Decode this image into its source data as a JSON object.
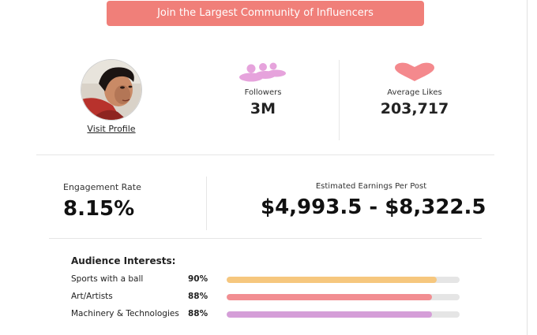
{
  "banner": {
    "label": "Join the Largest Community of Influencers",
    "color": "#f07f79"
  },
  "profile": {
    "avatar_icon": "profile-photo",
    "visit_label": "Visit Profile"
  },
  "stats": {
    "followers": {
      "icon": "people-icon",
      "icon_color": "#e6a3dc",
      "label": "Followers",
      "value": "3M"
    },
    "likes": {
      "icon": "heart-icon",
      "icon_color": "#f4898d",
      "label": "Average Likes",
      "value": "203,717"
    }
  },
  "engagement": {
    "label": "Engagement Rate",
    "value": "8.15%"
  },
  "earnings": {
    "label": "Estimated Earnings Per Post",
    "value": "$4,993.5 - $8,322.5"
  },
  "interests": {
    "title": "Audience Interests:",
    "items": [
      {
        "name": "Sports with a ball",
        "percent_label": "90%",
        "percent": 90,
        "color": "#f6c77e"
      },
      {
        "name": "Art/Artists",
        "percent_label": "88%",
        "percent": 88,
        "color": "#f28e92"
      },
      {
        "name": "Machinery & Technologies",
        "percent_label": "88%",
        "percent": 88,
        "color": "#d59ed8"
      }
    ]
  }
}
